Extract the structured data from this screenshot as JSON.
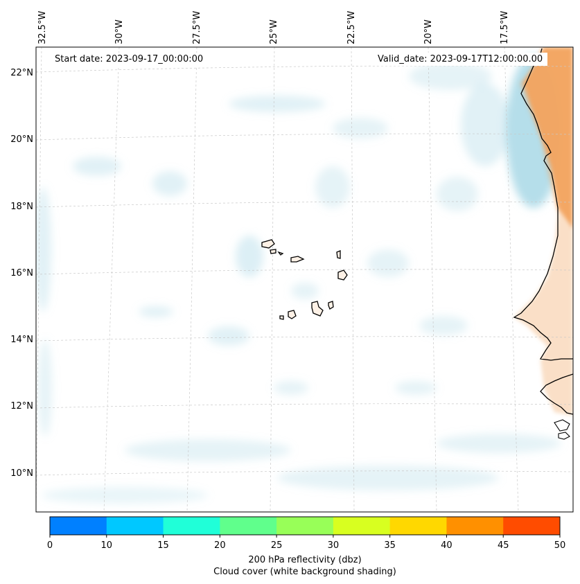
{
  "map": {
    "start_date": "Start date: 2023-09-17_00:00:00",
    "valid_date": "Valid_date: 2023-09-17T12:00:00.00",
    "lon_labels": [
      "32.5°W",
      "30°W",
      "27.5°W",
      "25°W",
      "22.5°W",
      "20°W",
      "17.5°W"
    ],
    "lat_labels": [
      "22°N",
      "20°N",
      "18°N",
      "16°N",
      "14°N",
      "12°N",
      "10°N"
    ],
    "gridlines": "dashed",
    "colors": {
      "cloud": "#a8d8e6",
      "land_reflectivity": "#f2a35f",
      "coastline": "#000000"
    }
  },
  "colorbar": {
    "ticks": [
      "0",
      "10",
      "15",
      "20",
      "25",
      "30",
      "35",
      "40",
      "45",
      "50"
    ],
    "colors": [
      "#0080ff",
      "#00c8ff",
      "#20ffd8",
      "#60ff8c",
      "#98ff58",
      "#d8ff20",
      "#ffd800",
      "#ff9000",
      "#ff4c00"
    ],
    "label_line1": "200 hPa reflectivity (dbz)",
    "label_line2": "Cloud cover (white background shading)"
  }
}
